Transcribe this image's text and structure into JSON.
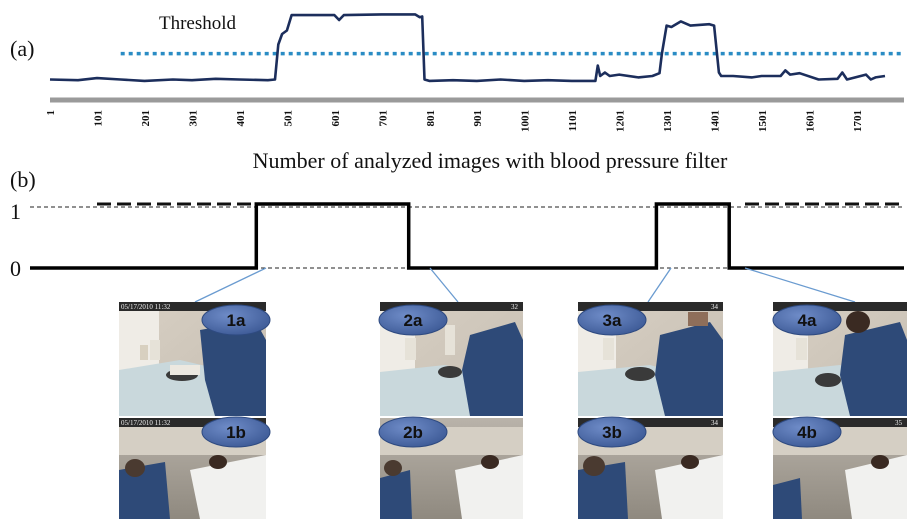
{
  "chart_data": [
    {
      "panel": "(a)",
      "type": "line",
      "threshold_label": "Threshold",
      "xlabel": "Number of analyzed images with blood pressure filter",
      "xlim": [
        1,
        1800
      ],
      "ylim": [
        0,
        1
      ],
      "threshold": 0.42,
      "x_ticks": [
        "1",
        "101",
        "201",
        "301",
        "401",
        "501",
        "601",
        "701",
        "801",
        "901",
        "1001",
        "1101",
        "1201",
        "1301",
        "1401",
        "1501",
        "1601",
        "1701"
      ],
      "x_tick_values": [
        1,
        101,
        201,
        301,
        401,
        501,
        601,
        701,
        801,
        901,
        1001,
        1101,
        1201,
        1301,
        1401,
        1501,
        1601,
        1701
      ],
      "series": [
        {
          "color": "#1c2e5c",
          "x": [
            1,
            60,
            100,
            150,
            200,
            260,
            300,
            350,
            400,
            460,
            475,
            482,
            490,
            500,
            510,
            600,
            610,
            620,
            700,
            770,
            780,
            785,
            790,
            800,
            850,
            900,
            950,
            1000,
            1050,
            1100,
            1150,
            1155,
            1160,
            1170,
            1180,
            1200,
            1240,
            1270,
            1285,
            1290,
            1300,
            1310,
            1330,
            1350,
            1390,
            1400,
            1410,
            1415,
            1440,
            1480,
            1500,
            1540,
            1550,
            1560,
            1580,
            1620,
            1660,
            1670,
            1680,
            1720,
            1730,
            1740,
            1760
          ],
          "values": [
            0.05,
            0.04,
            0.07,
            0.05,
            0.03,
            0.05,
            0.04,
            0.06,
            0.05,
            0.04,
            0.05,
            0.55,
            0.7,
            0.75,
            0.97,
            0.97,
            0.9,
            0.97,
            0.98,
            0.98,
            0.94,
            0.95,
            0.05,
            0.03,
            0.04,
            0.03,
            0.05,
            0.03,
            0.04,
            0.03,
            0.03,
            0.25,
            0.1,
            0.15,
            0.1,
            0.12,
            0.08,
            0.1,
            0.14,
            0.42,
            0.82,
            0.8,
            0.88,
            0.82,
            0.84,
            0.82,
            0.15,
            0.1,
            0.1,
            0.08,
            0.1,
            0.1,
            0.18,
            0.12,
            0.14,
            0.05,
            0.06,
            0.15,
            0.05,
            0.12,
            0.05,
            0.08,
            0.1
          ]
        }
      ]
    },
    {
      "panel": "(b)",
      "type": "line",
      "y_ticks": [
        "1",
        "0"
      ],
      "y_tick_values": [
        1,
        0
      ],
      "ylim": [
        0,
        1
      ],
      "series": [
        {
          "color": "#000000",
          "x": [
            0,
            466,
            466,
            780,
            780,
            1290,
            1290,
            1440,
            1440,
            1800
          ],
          "values": [
            0,
            0,
            1,
            1,
            0,
            0,
            1,
            1,
            0,
            0
          ]
        }
      ]
    }
  ],
  "badges": [
    {
      "label": "1a"
    },
    {
      "label": "1b"
    },
    {
      "label": "2a"
    },
    {
      "label": "2b"
    },
    {
      "label": "3a"
    },
    {
      "label": "3b"
    },
    {
      "label": "4a"
    },
    {
      "label": "4b"
    }
  ],
  "timestamps": {
    "1a": "05/17/2010 11:32",
    "1b": "05/17/2010 11:32",
    "2a": "32",
    "3a": "34",
    "3b": "34",
    "4b": "35"
  },
  "colors": {
    "signal": "#1c2e5c",
    "threshold": "#2a8cc4",
    "axis": "#9a9a9a",
    "badge_fill": "#4a69a8",
    "connector": "#6a9bd0"
  }
}
